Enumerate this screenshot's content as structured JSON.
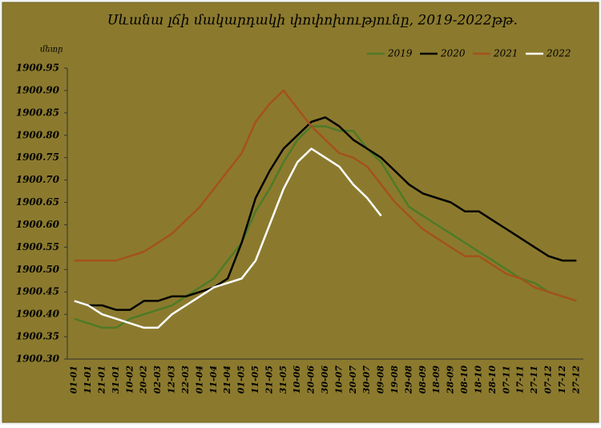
{
  "chart_data": {
    "type": "line",
    "title": "Սևանա լճի մակարդակի փոփոխությունը, 2019-2022թթ.",
    "y_label": "մետր",
    "categories": [
      "01-01",
      "11-01",
      "21-01",
      "31-01",
      "10-02",
      "20-02",
      "02-03",
      "12-03",
      "22-03",
      "01-04",
      "11-04",
      "21-04",
      "01-05",
      "11-05",
      "21-05",
      "31-05",
      "10-06",
      "20-06",
      "30-06",
      "10-07",
      "20-07",
      "30-07",
      "09-08",
      "19-08",
      "29-08",
      "08-09",
      "18-09",
      "28-09",
      "08-10",
      "18-10",
      "28-10",
      "07-11",
      "17-11",
      "27-11",
      "07-12",
      "17-12",
      "27-12"
    ],
    "series": [
      {
        "name": "2019",
        "color": "#4f7a26",
        "values": [
          1900.39,
          1900.38,
          1900.37,
          1900.37,
          1900.39,
          1900.4,
          1900.41,
          1900.42,
          1900.44,
          1900.46,
          1900.48,
          1900.52,
          1900.56,
          1900.63,
          1900.68,
          1900.74,
          1900.79,
          1900.82,
          1900.82,
          1900.81,
          1900.81,
          1900.77,
          1900.74,
          1900.69,
          1900.64,
          1900.62,
          1900.6,
          1900.58,
          1900.56,
          1900.54,
          1900.52,
          1900.5,
          1900.48,
          1900.47,
          1900.45,
          1900.44,
          1900.43
        ]
      },
      {
        "name": "2020",
        "color": "#000000",
        "values": [
          1900.43,
          1900.42,
          1900.42,
          1900.41,
          1900.41,
          1900.43,
          1900.43,
          1900.44,
          1900.44,
          1900.45,
          1900.46,
          1900.48,
          1900.56,
          1900.66,
          1900.72,
          1900.77,
          1900.8,
          1900.83,
          1900.84,
          1900.82,
          1900.79,
          1900.77,
          1900.75,
          1900.72,
          1900.69,
          1900.67,
          1900.66,
          1900.65,
          1900.63,
          1900.63,
          1900.61,
          1900.59,
          1900.57,
          1900.55,
          1900.53,
          1900.52,
          1900.52
        ]
      },
      {
        "name": "2021",
        "color": "#a4521c",
        "values": [
          1900.52,
          1900.52,
          1900.52,
          1900.52,
          1900.53,
          1900.54,
          1900.56,
          1900.58,
          1900.61,
          1900.64,
          1900.68,
          1900.72,
          1900.76,
          1900.83,
          1900.87,
          1900.9,
          1900.86,
          1900.82,
          1900.79,
          1900.76,
          1900.75,
          1900.73,
          1900.69,
          1900.65,
          1900.62,
          1900.59,
          1900.57,
          1900.55,
          1900.53,
          1900.53,
          1900.51,
          1900.49,
          1900.48,
          1900.46,
          1900.45,
          1900.44,
          1900.43
        ]
      },
      {
        "name": "2022",
        "color": "#ffffff",
        "values": [
          1900.43,
          1900.42,
          1900.4,
          1900.39,
          1900.38,
          1900.37,
          1900.37,
          1900.4,
          1900.42,
          1900.44,
          1900.46,
          1900.47,
          1900.48,
          1900.52,
          1900.6,
          1900.68,
          1900.74,
          1900.77,
          1900.75,
          1900.73,
          1900.69,
          1900.66,
          1900.62,
          null,
          null,
          null,
          null,
          null,
          null,
          null,
          null,
          null,
          null,
          null,
          null,
          null,
          null
        ]
      }
    ],
    "ylim": [
      1900.3,
      1900.95
    ],
    "yticks": [
      {
        "value": 1900.3,
        "label": "1900.30"
      },
      1900.35,
      {
        "value": 1900.4,
        "label": "1900.40"
      },
      1900.45,
      {
        "value": 1900.5,
        "label": "1900.50"
      },
      1900.55,
      {
        "value": 1900.6,
        "label": "1900.60"
      },
      1900.65,
      {
        "value": 1900.7,
        "label": "1900.70"
      },
      1900.75,
      {
        "value": 1900.8,
        "label": "1900.80"
      },
      1900.85,
      {
        "value": 1900.9,
        "label": "1900.90"
      },
      1900.95
    ],
    "legend": "top-right"
  }
}
